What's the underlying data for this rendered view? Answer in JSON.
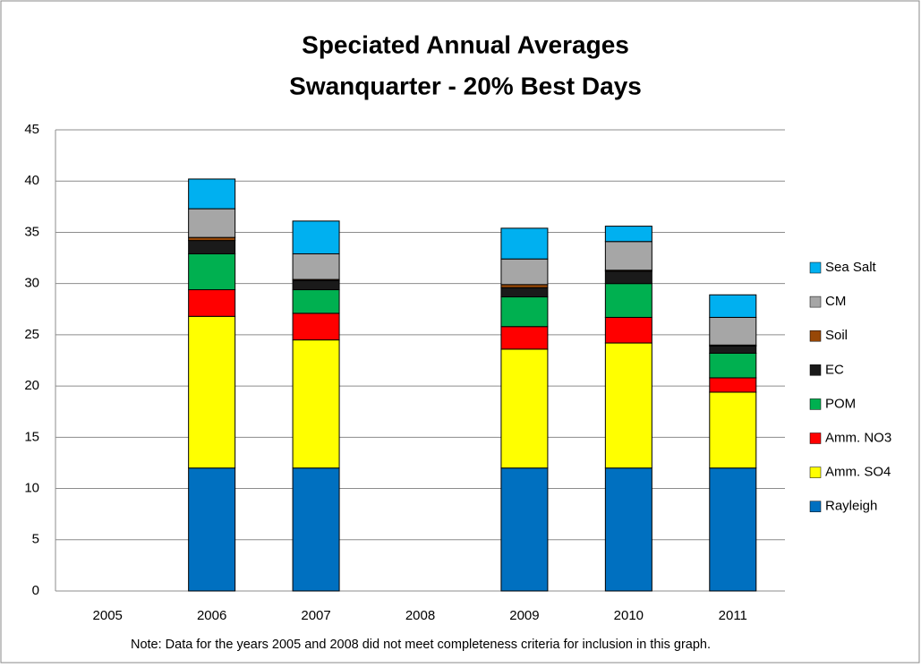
{
  "chart_data": {
    "type": "stacked_bar",
    "title": "Speciated Annual Averages",
    "subtitle": "Swanquarter - 20% Best Days",
    "note": "Note: Data for the years 2005 and 2008 did not meet completeness criteria for inclusion in this graph.",
    "categories": [
      "2005",
      "2006",
      "2007",
      "2008",
      "2009",
      "2010",
      "2011"
    ],
    "ylim": [
      0,
      45
    ],
    "yticks": [
      0,
      5,
      10,
      15,
      20,
      25,
      30,
      35,
      40,
      45
    ],
    "grid": true,
    "legend": "right",
    "series": [
      {
        "name": "Rayleigh",
        "color": "#0070c0",
        "values": [
          null,
          12,
          12,
          null,
          12,
          12,
          12
        ]
      },
      {
        "name": "Amm. SO4",
        "color": "#ffff00",
        "values": [
          null,
          14.8,
          12.5,
          null,
          11.6,
          12.2,
          7.4
        ]
      },
      {
        "name": "Amm. NO3",
        "color": "#ff0000",
        "values": [
          null,
          2.6,
          2.6,
          null,
          2.2,
          2.5,
          1.4
        ]
      },
      {
        "name": "POM",
        "color": "#00b050",
        "values": [
          null,
          3.5,
          2.3,
          null,
          2.9,
          3.3,
          2.4
        ]
      },
      {
        "name": "EC",
        "color": "#1a1a1a",
        "values": [
          null,
          1.3,
          0.9,
          null,
          0.9,
          1.2,
          0.7
        ]
      },
      {
        "name": "Soil",
        "color": "#984807",
        "values": [
          null,
          0.3,
          0.1,
          null,
          0.3,
          0.1,
          0.1
        ]
      },
      {
        "name": "CM",
        "color": "#a6a6a6",
        "values": [
          null,
          2.8,
          2.5,
          null,
          2.5,
          2.8,
          2.7
        ]
      },
      {
        "name": "Sea Salt",
        "color": "#00b0f0",
        "values": [
          null,
          2.9,
          3.2,
          null,
          3.0,
          1.5,
          2.2
        ]
      }
    ]
  }
}
